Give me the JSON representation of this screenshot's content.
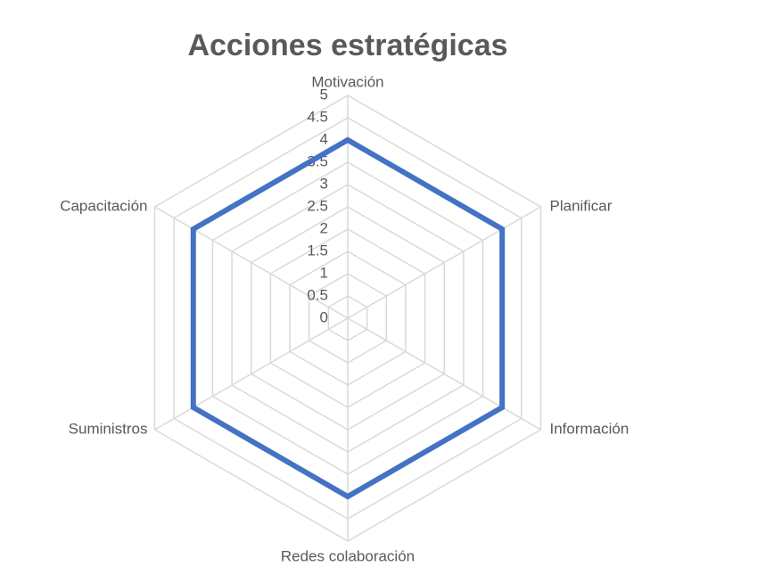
{
  "chart_data": {
    "type": "radar",
    "title": "Acciones estratégicas",
    "categories": [
      "Motivación",
      "Planificar",
      "Información",
      "Redes colaboración",
      "Suministros",
      "Capacitación"
    ],
    "series": [
      {
        "values": [
          4,
          4,
          4,
          4,
          4,
          4
        ],
        "color": "#4472C4"
      }
    ],
    "rlim": [
      0,
      5
    ],
    "ticks": [
      "0",
      "0.5",
      "1",
      "1.5",
      "2",
      "2.5",
      "3",
      "3.5",
      "4",
      "4.5",
      "5"
    ],
    "grid": true,
    "grid_color": "#D9D9D9",
    "legend": "none"
  }
}
